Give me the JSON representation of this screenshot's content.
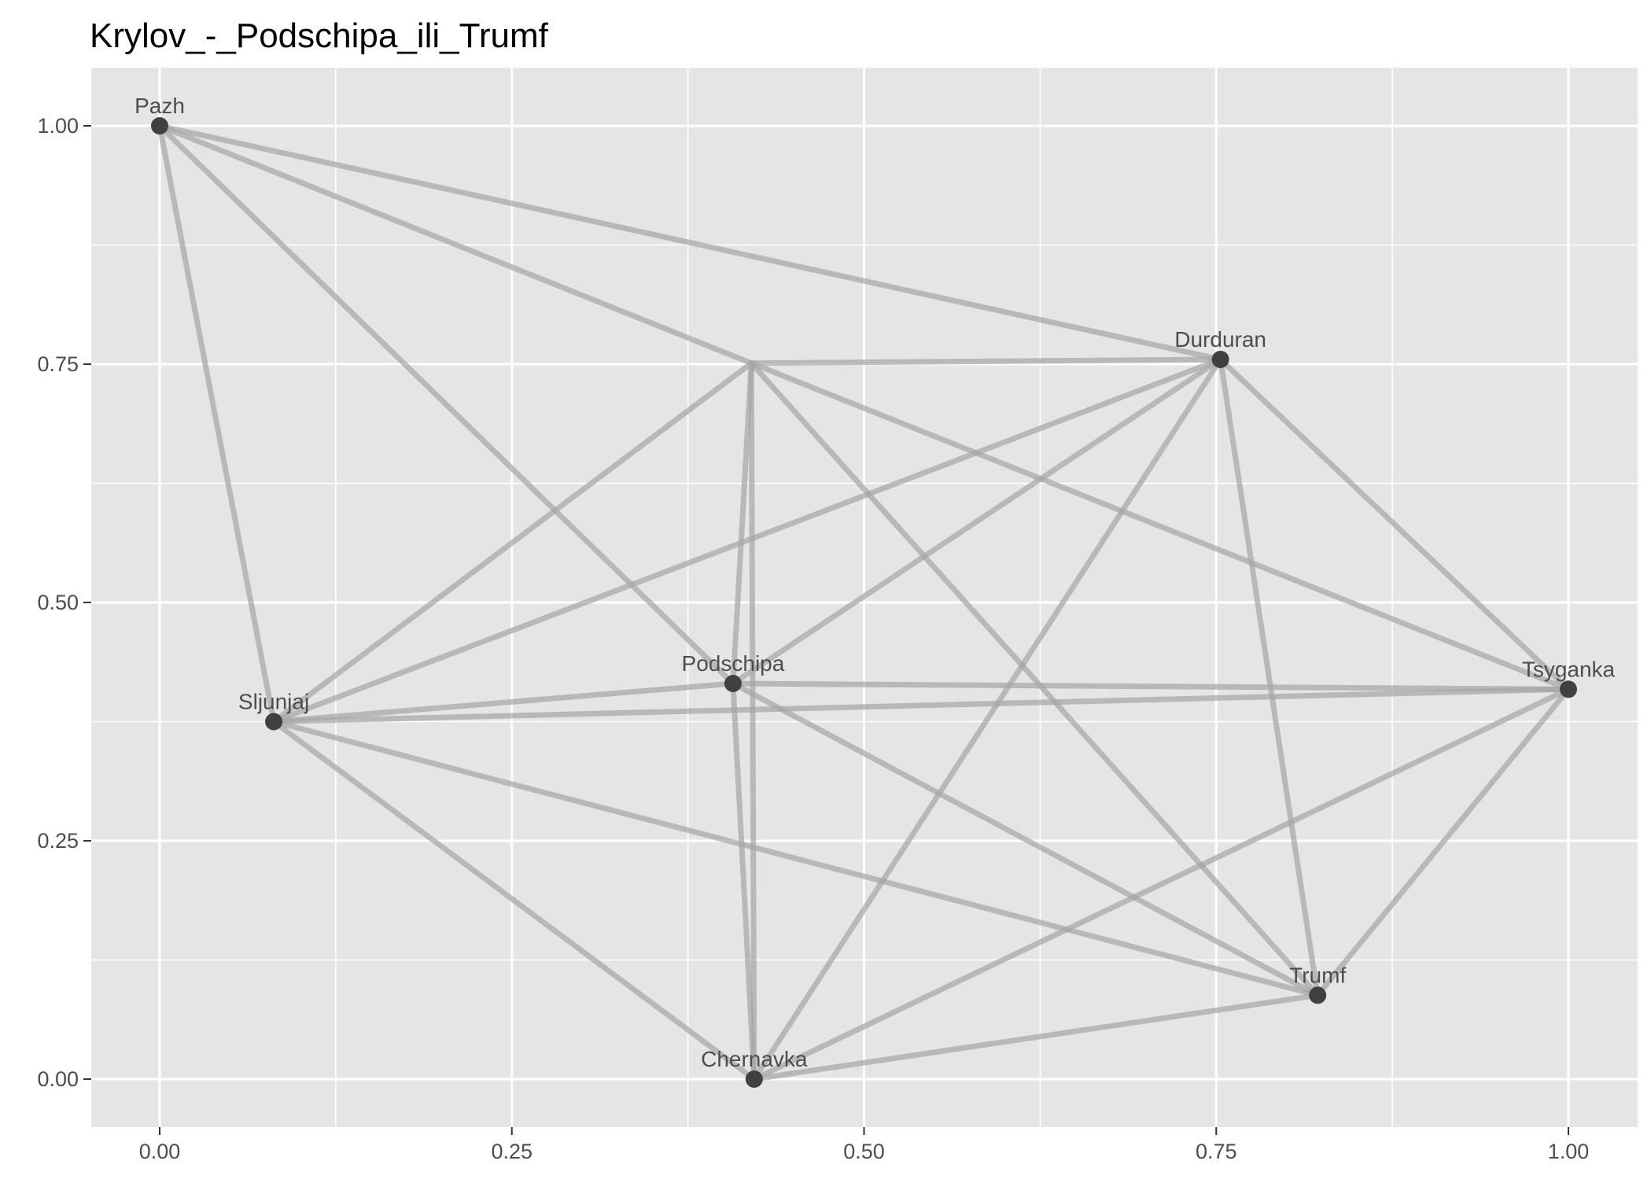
{
  "chart_data": {
    "type": "network",
    "title": "Krylov_-_Podschipa_ili_Trumf",
    "xlabel": "",
    "ylabel": "",
    "xlim": [
      -0.05,
      1.05
    ],
    "ylim": [
      -0.05,
      1.05
    ],
    "x_ticks": [
      0.0,
      0.25,
      0.5,
      0.75,
      1.0
    ],
    "x_tick_labels": [
      "0.00",
      "0.25",
      "0.50",
      "0.75",
      "1.00"
    ],
    "y_ticks": [
      0.0,
      0.25,
      0.5,
      0.75,
      1.0
    ],
    "y_tick_labels": [
      "0.00",
      "0.25",
      "0.50",
      "0.75",
      "1.00"
    ],
    "grid": true,
    "legend": "none",
    "colors": {
      "panel_background": "#e5e5e5",
      "grid_line": "#ffffff",
      "edge": "#a6a6a6",
      "node": "#404040",
      "label": "#4d4d4d"
    },
    "nodes": [
      {
        "id": "Pazh",
        "label": "Pazh",
        "x": 0.0,
        "y": 1.0
      },
      {
        "id": "Durduran",
        "label": "Durduran",
        "x": 0.753,
        "y": 0.755
      },
      {
        "id": "Podschipa",
        "label": "Podschipa",
        "x": 0.407,
        "y": 0.415
      },
      {
        "id": "Sljunjaj",
        "label": "Sljunjaj",
        "x": 0.081,
        "y": 0.375
      },
      {
        "id": "Tsyganka",
        "label": "Tsyganka",
        "x": 1.0,
        "y": 0.409
      },
      {
        "id": "Trumf",
        "label": "Trumf",
        "x": 0.822,
        "y": 0.088
      },
      {
        "id": "Chernavka",
        "label": "Chernavka",
        "x": 0.422,
        "y": 0.0
      },
      {
        "id": "hub",
        "label": "",
        "x": 0.42,
        "y": 0.751
      }
    ],
    "edges": [
      [
        "Pazh",
        "Durduran"
      ],
      [
        "Pazh",
        "hub"
      ],
      [
        "Pazh",
        "Podschipa"
      ],
      [
        "Pazh",
        "Sljunjaj"
      ],
      [
        "hub",
        "Durduran"
      ],
      [
        "hub",
        "Sljunjaj"
      ],
      [
        "hub",
        "Podschipa"
      ],
      [
        "hub",
        "Chernavka"
      ],
      [
        "hub",
        "Trumf"
      ],
      [
        "hub",
        "Tsyganka"
      ],
      [
        "Durduran",
        "Sljunjaj"
      ],
      [
        "Durduran",
        "Podschipa"
      ],
      [
        "Durduran",
        "Chernavka"
      ],
      [
        "Durduran",
        "Trumf"
      ],
      [
        "Durduran",
        "Tsyganka"
      ],
      [
        "Sljunjaj",
        "Podschipa"
      ],
      [
        "Sljunjaj",
        "Tsyganka"
      ],
      [
        "Sljunjaj",
        "Trumf"
      ],
      [
        "Sljunjaj",
        "Chernavka"
      ],
      [
        "Podschipa",
        "Tsyganka"
      ],
      [
        "Podschipa",
        "Trumf"
      ],
      [
        "Podschipa",
        "Chernavka"
      ],
      [
        "Tsyganka",
        "Chernavka"
      ],
      [
        "Tsyganka",
        "Trumf"
      ],
      [
        "Trumf",
        "Chernavka"
      ]
    ]
  }
}
